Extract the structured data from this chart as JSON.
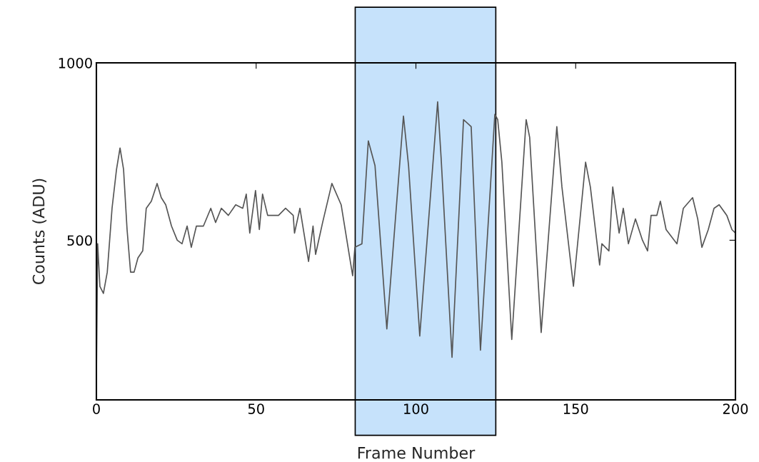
{
  "chart_data": {
    "type": "line",
    "xlabel": "Frame Number",
    "ylabel": "Counts (ADU)",
    "xlim": [
      0,
      200
    ],
    "ylim": [
      50,
      1000
    ],
    "xticks": [
      0,
      50,
      100,
      150,
      200
    ],
    "yticks": [
      500,
      1000
    ],
    "grid": false,
    "line_style": "solid",
    "marker": "none",
    "bands": [
      {
        "axis": "x",
        "from": 81,
        "to": 125,
        "color": "#c6e2fb"
      }
    ],
    "series": [
      {
        "color": "#555555",
        "x": [
          0,
          0.4,
          1.1,
          2.2,
          3.4,
          4.9,
          6.3,
          7.4,
          8.5,
          9.6,
          10.7,
          11.8,
          13,
          14.5,
          15.6,
          17.2,
          19,
          20.3,
          21.7,
          23.5,
          25.3,
          26.8,
          28.4,
          29.7,
          31.3,
          33.5,
          35.8,
          37.3,
          39.1,
          41.3,
          43.6,
          45.8,
          46.9,
          48,
          49.8,
          51,
          52,
          53.6,
          57,
          59.2,
          61.6,
          62,
          63.7,
          65.5,
          66.4,
          67.8,
          68.6,
          70.8,
          73.7,
          76.6,
          79.3,
          80.2,
          80.9,
          83.1,
          85.1,
          87.2,
          90.9,
          96.1,
          97.7,
          101.2,
          106.8,
          107.9,
          111.3,
          114.9,
          117.3,
          120.2,
          124.7,
          125.6,
          126.9,
          130,
          134.5,
          135.6,
          139.2,
          144.1,
          145.7,
          149.3,
          153.1,
          154.6,
          157.5,
          158.2,
          160.4,
          161.6,
          163.6,
          164.9,
          166.5,
          168.7,
          170.9,
          172.5,
          173.6,
          175.4,
          176.5,
          178.3,
          181.7,
          183.7,
          186.6,
          188.2,
          189.5,
          191.5,
          193.3,
          194.9,
          197.3,
          198.9,
          200
        ],
        "values": [
          115,
          490,
          370,
          350,
          410,
          590,
          700,
          760,
          700,
          530,
          410,
          410,
          450,
          470,
          590,
          610,
          660,
          620,
          600,
          540,
          500,
          490,
          540,
          480,
          540,
          540,
          590,
          550,
          590,
          570,
          600,
          590,
          630,
          520,
          640,
          530,
          630,
          570,
          570,
          590,
          570,
          520,
          590,
          490,
          440,
          540,
          460,
          550,
          660,
          600,
          450,
          400,
          480,
          490,
          780,
          710,
          250,
          850,
          710,
          230,
          890,
          730,
          170,
          840,
          820,
          190,
          855,
          840,
          720,
          220,
          840,
          790,
          240,
          820,
          650,
          370,
          720,
          650,
          430,
          490,
          470,
          650,
          520,
          590,
          490,
          560,
          500,
          470,
          570,
          570,
          610,
          530,
          490,
          590,
          620,
          560,
          480,
          530,
          590,
          600,
          570,
          530,
          520
        ]
      }
    ]
  }
}
